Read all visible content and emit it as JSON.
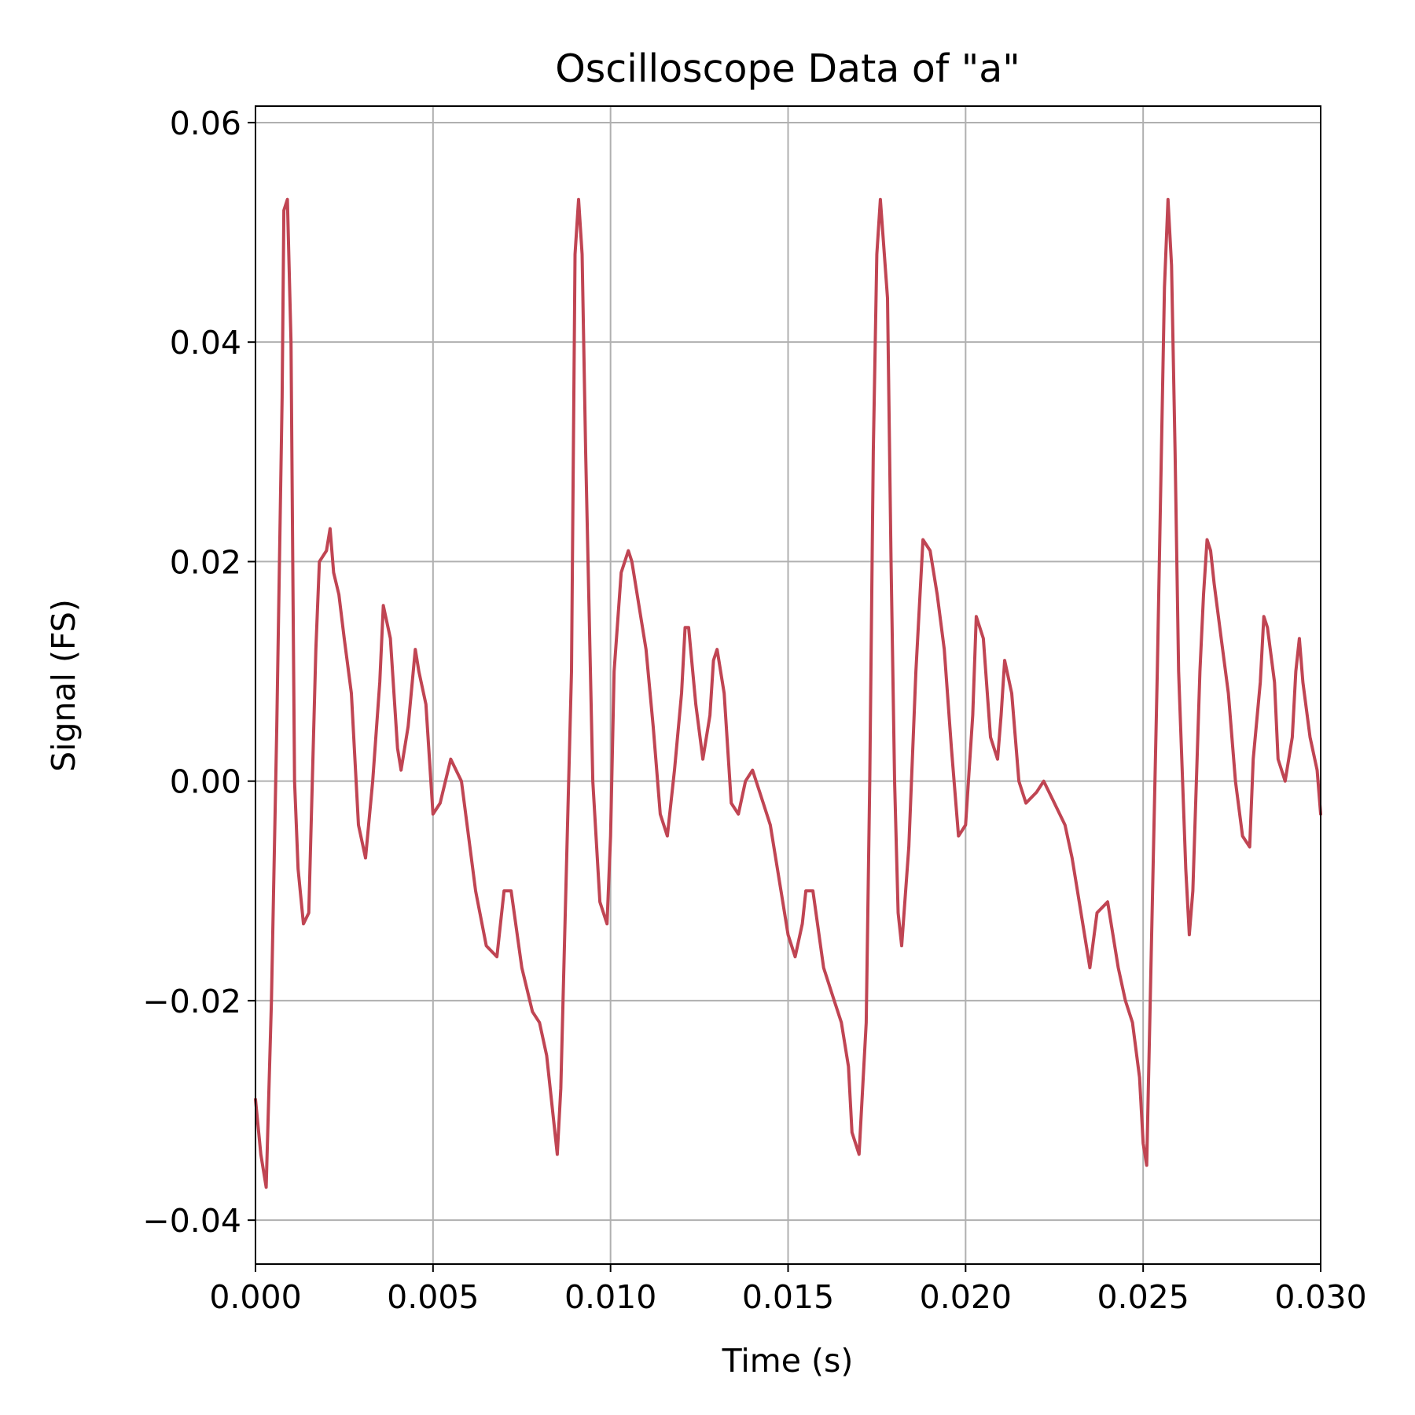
{
  "chart_data": {
    "type": "line",
    "title": "Oscilloscope Data of \"a\"",
    "xlabel": "Time (s)",
    "ylabel": "Signal (FS)",
    "xlim": [
      0.0,
      0.03
    ],
    "ylim": [
      -0.044,
      0.0615
    ],
    "x_ticks": [
      0.0,
      0.005,
      0.01,
      0.015,
      0.02,
      0.025,
      0.03
    ],
    "x_tick_labels": [
      "0.000",
      "0.005",
      "0.010",
      "0.015",
      "0.020",
      "0.025",
      "0.030"
    ],
    "y_ticks": [
      -0.04,
      -0.02,
      0.0,
      0.02,
      0.04,
      0.06
    ],
    "y_tick_labels": [
      "−0.04",
      "−0.02",
      "0.00",
      "0.02",
      "0.04",
      "0.06"
    ],
    "grid": true,
    "series": [
      {
        "color": "#c04553",
        "x": [
          0.0,
          0.00015,
          0.0003,
          0.00045,
          0.0006,
          0.00075,
          0.0008,
          0.0009,
          0.001,
          0.00105,
          0.0011,
          0.0012,
          0.00135,
          0.0015,
          0.0016,
          0.0017,
          0.0018,
          0.002,
          0.0021,
          0.0022,
          0.00235,
          0.0025,
          0.0027,
          0.0029,
          0.0031,
          0.0033,
          0.0035,
          0.0036,
          0.0038,
          0.004,
          0.0041,
          0.0043,
          0.0045,
          0.0046,
          0.0048,
          0.005,
          0.0052,
          0.0055,
          0.0058,
          0.006,
          0.0062,
          0.0065,
          0.0068,
          0.007,
          0.0072,
          0.0075,
          0.0078,
          0.008,
          0.0082,
          0.0084,
          0.0085,
          0.0086,
          0.0087,
          0.0089,
          0.009,
          0.0091,
          0.0092,
          0.0093,
          0.0095,
          0.0097,
          0.0099,
          0.01,
          0.0101,
          0.0103,
          0.0105,
          0.0106,
          0.0108,
          0.011,
          0.0112,
          0.0114,
          0.0116,
          0.0118,
          0.012,
          0.0121,
          0.0122,
          0.0124,
          0.0126,
          0.0128,
          0.0129,
          0.013,
          0.0132,
          0.0134,
          0.0136,
          0.0138,
          0.014,
          0.0142,
          0.0145,
          0.0148,
          0.015,
          0.0152,
          0.0154,
          0.0155,
          0.0157,
          0.016,
          0.0163,
          0.0165,
          0.0167,
          0.0168,
          0.017,
          0.0172,
          0.0173,
          0.0174,
          0.0175,
          0.0176,
          0.0178,
          0.0179,
          0.018,
          0.0181,
          0.0182,
          0.0184,
          0.0186,
          0.0187,
          0.0188,
          0.019,
          0.0192,
          0.0194,
          0.0196,
          0.0198,
          0.02,
          0.0202,
          0.0203,
          0.0205,
          0.0207,
          0.0209,
          0.021,
          0.0211,
          0.0213,
          0.0215,
          0.0217,
          0.022,
          0.0222,
          0.0225,
          0.0228,
          0.023,
          0.0232,
          0.0234,
          0.0235,
          0.0237,
          0.024,
          0.0243,
          0.0245,
          0.0247,
          0.0249,
          0.025,
          0.0251,
          0.0252,
          0.0254,
          0.0256,
          0.0257,
          0.0258,
          0.0259,
          0.026,
          0.0262,
          0.0263,
          0.0264,
          0.0265,
          0.0266,
          0.0267,
          0.0268,
          0.0269,
          0.027,
          0.0272,
          0.0274,
          0.0276,
          0.0278,
          0.028,
          0.0281,
          0.0283,
          0.0284,
          0.0285,
          0.0287,
          0.0288,
          0.029,
          0.0292,
          0.0293,
          0.0294,
          0.0295,
          0.0297,
          0.0299,
          0.03
        ],
        "y": [
          -0.029,
          -0.034,
          -0.037,
          -0.02,
          0.005,
          0.035,
          0.052,
          0.053,
          0.04,
          0.02,
          0.0,
          -0.008,
          -0.013,
          -0.012,
          0.0,
          0.012,
          0.02,
          0.021,
          0.023,
          0.019,
          0.017,
          0.013,
          0.008,
          -0.004,
          -0.007,
          0.0,
          0.009,
          0.016,
          0.013,
          0.003,
          0.001,
          0.005,
          0.012,
          0.01,
          0.007,
          -0.003,
          -0.002,
          0.002,
          0.0,
          -0.005,
          -0.01,
          -0.015,
          -0.016,
          -0.01,
          -0.01,
          -0.017,
          -0.021,
          -0.022,
          -0.025,
          -0.031,
          -0.034,
          -0.028,
          -0.015,
          0.01,
          0.048,
          0.053,
          0.048,
          0.03,
          0.0,
          -0.011,
          -0.013,
          -0.005,
          0.01,
          0.019,
          0.021,
          0.02,
          0.016,
          0.012,
          0.005,
          -0.003,
          -0.005,
          0.001,
          0.008,
          0.014,
          0.014,
          0.007,
          0.002,
          0.006,
          0.011,
          0.012,
          0.008,
          -0.002,
          -0.003,
          0.0,
          0.001,
          -0.001,
          -0.004,
          -0.01,
          -0.014,
          -0.016,
          -0.013,
          -0.01,
          -0.01,
          -0.017,
          -0.02,
          -0.022,
          -0.026,
          -0.032,
          -0.034,
          -0.022,
          0.0,
          0.03,
          0.048,
          0.053,
          0.044,
          0.02,
          0.0,
          -0.012,
          -0.015,
          -0.006,
          0.01,
          0.016,
          0.022,
          0.021,
          0.017,
          0.012,
          0.003,
          -0.005,
          -0.004,
          0.006,
          0.015,
          0.013,
          0.004,
          0.002,
          0.006,
          0.011,
          0.008,
          0.0,
          -0.002,
          -0.001,
          0.0,
          -0.002,
          -0.004,
          -0.007,
          -0.011,
          -0.015,
          -0.017,
          -0.012,
          -0.011,
          -0.017,
          -0.02,
          -0.022,
          -0.027,
          -0.033,
          -0.035,
          -0.02,
          0.01,
          0.045,
          0.053,
          0.047,
          0.03,
          0.01,
          -0.008,
          -0.014,
          -0.01,
          0.0,
          0.01,
          0.017,
          0.022,
          0.021,
          0.018,
          0.013,
          0.008,
          0.0,
          -0.005,
          -0.006,
          0.002,
          0.009,
          0.015,
          0.014,
          0.009,
          0.002,
          0.0,
          0.004,
          0.01,
          0.013,
          0.009,
          0.004,
          0.001,
          -0.003
        ]
      }
    ]
  }
}
